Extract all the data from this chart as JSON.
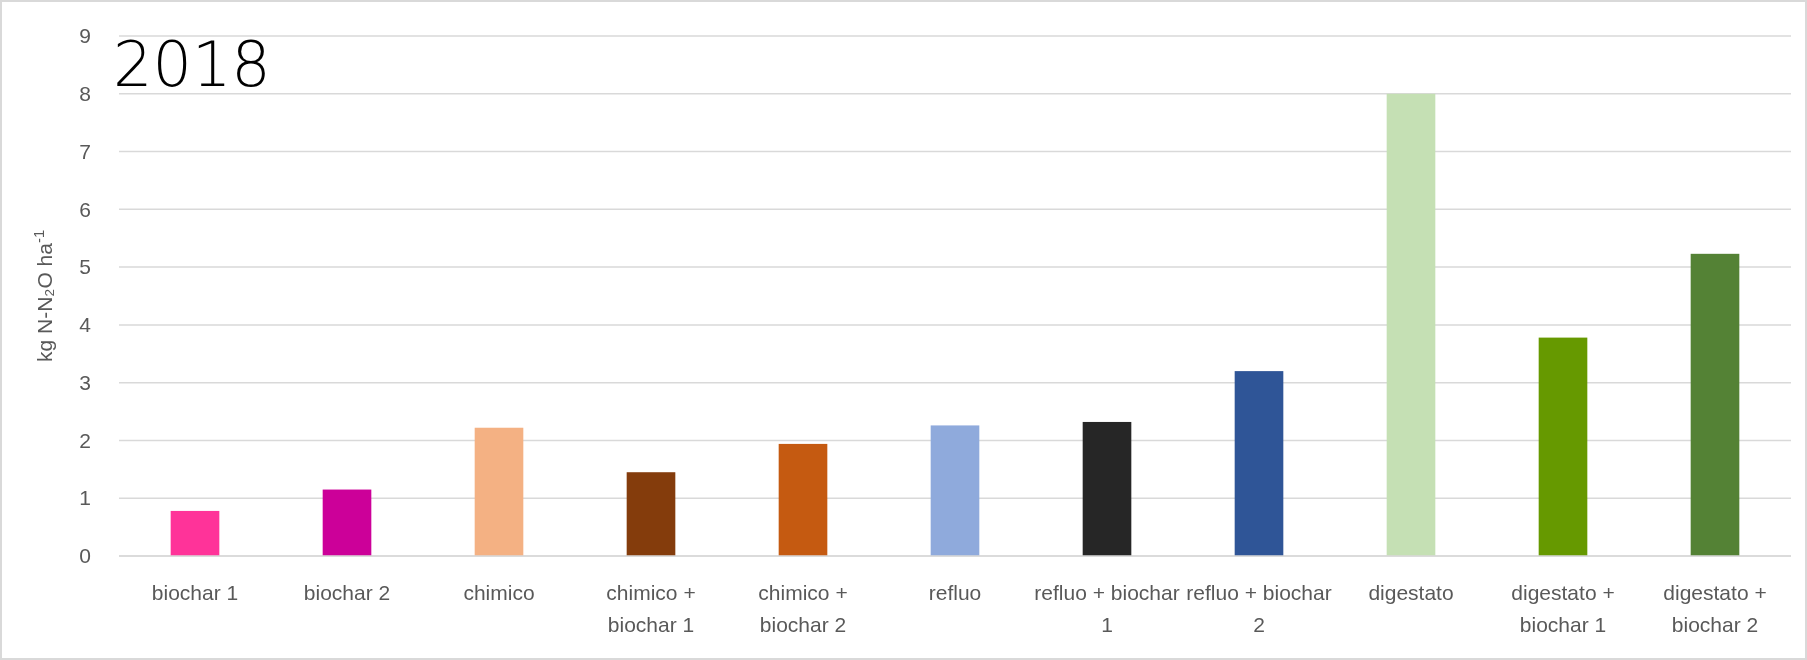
{
  "chart_data": {
    "type": "bar",
    "title": "2018",
    "ylabel": "kg N-N₂O ha$^{-1}$",
    "categories": [
      "biochar 1",
      "biochar 2",
      "chimico",
      "chimico + biochar 1",
      "chimico + biochar 2",
      "refluo",
      "refluo + biochar 1",
      "refluo + biochar 2",
      "digestato",
      "digestato + biochar 1",
      "digestato + biochar 2"
    ],
    "values": [
      0.78,
      1.15,
      2.22,
      1.45,
      1.94,
      2.26,
      2.32,
      3.2,
      8.0,
      3.78,
      5.23
    ],
    "colors": [
      "#ff3399",
      "#cc0099",
      "#f4b183",
      "#843c0c",
      "#c55a11",
      "#8faadc",
      "#262626",
      "#2f5597",
      "#c5e0b4",
      "#669900",
      "#548235"
    ],
    "ylim": [
      0,
      9
    ],
    "yticks": [
      0,
      1,
      2,
      3,
      4,
      5,
      6,
      7,
      8,
      9
    ],
    "grid": "y"
  }
}
